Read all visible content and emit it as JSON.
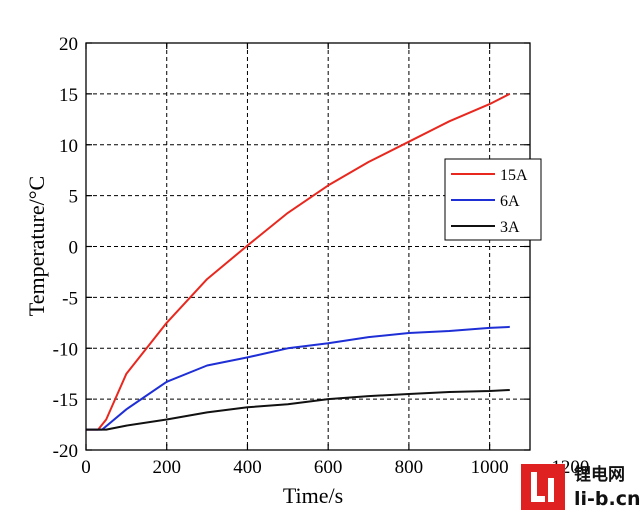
{
  "chart_data": {
    "type": "line",
    "xlabel": "Time/s",
    "ylabel": "Temperature/°C",
    "xlim": [
      0,
      1100
    ],
    "ylim": [
      -20,
      20
    ],
    "xticks": [
      0,
      200,
      400,
      600,
      800,
      1000,
      1200
    ],
    "yticks": [
      -20,
      -15,
      -10,
      -5,
      0,
      5,
      10,
      15,
      20
    ],
    "grid": true,
    "legend_position": "right",
    "series": [
      {
        "name": "15A",
        "color": "#e8281f",
        "x": [
          0,
          30,
          50,
          100,
          200,
          300,
          400,
          500,
          600,
          700,
          800,
          900,
          1000,
          1050
        ],
        "y": [
          -18,
          -18,
          -17,
          -12.5,
          -7.5,
          -3.2,
          0.1,
          3.3,
          6.0,
          8.3,
          10.3,
          12.3,
          14.0,
          15.0
        ]
      },
      {
        "name": "6A",
        "color": "#1f2fd6",
        "x": [
          0,
          40,
          100,
          200,
          300,
          400,
          500,
          600,
          700,
          800,
          900,
          1000,
          1050
        ],
        "y": [
          -18,
          -18,
          -16,
          -13.3,
          -11.7,
          -10.9,
          -10.0,
          -9.5,
          -8.9,
          -8.5,
          -8.3,
          -8.0,
          -7.9
        ]
      },
      {
        "name": "3A",
        "color": "#111111",
        "x": [
          0,
          50,
          100,
          200,
          300,
          400,
          500,
          600,
          700,
          800,
          900,
          1000,
          1050
        ],
        "y": [
          -18,
          -18,
          -17.6,
          -17.0,
          -16.3,
          -15.8,
          -15.5,
          -15.0,
          -14.7,
          -14.5,
          -14.3,
          -14.2,
          -14.1
        ]
      }
    ]
  },
  "watermark": {
    "logo_letter": "Li",
    "chinese": "锂电网",
    "domain": "li-b.cn",
    "logo_color": "#e02121"
  }
}
